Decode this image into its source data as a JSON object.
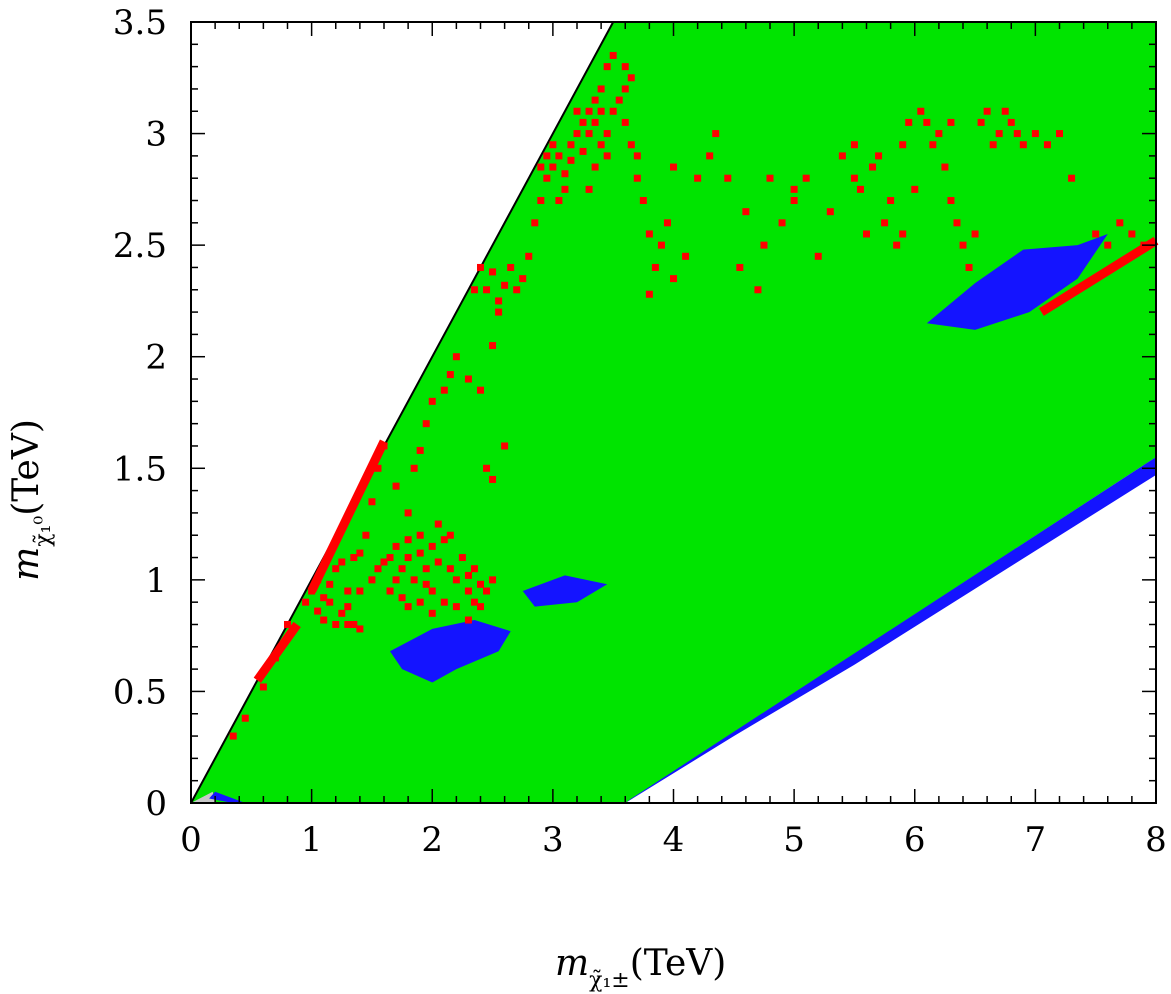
{
  "chart_data": {
    "type": "scatter",
    "xlabel": {
      "symbol": "m",
      "subscript": "χ̃₁±",
      "unit": "(TeV)"
    },
    "ylabel": {
      "symbol": "m",
      "subscript": "χ̃₁⁰",
      "unit": "(TeV)"
    },
    "xlim": [
      0,
      8
    ],
    "ylim": [
      0,
      3.5
    ],
    "x_ticks": [
      "0",
      "1",
      "2",
      "3",
      "4",
      "5",
      "6",
      "7",
      "8"
    ],
    "y_ticks": [
      "0",
      "0.5",
      "1",
      "1.5",
      "2",
      "2.5",
      "3",
      "3.5"
    ],
    "grid": false,
    "colors": {
      "green": "#00e400",
      "blue": "#1414ff",
      "red": "#ff0000",
      "gray": "#c8c8c8"
    },
    "regions": [
      {
        "color": "green",
        "points": [
          [
            0,
            0
          ],
          [
            3.5,
            3.5
          ],
          [
            8.0,
            3.5
          ],
          [
            8.0,
            1.55
          ],
          [
            3.6,
            0
          ],
          [
            0,
            0
          ]
        ]
      },
      {
        "color": "gray",
        "points": [
          [
            0,
            0
          ],
          [
            0.18,
            0.05
          ],
          [
            0.2,
            0
          ],
          [
            0,
            0
          ]
        ]
      },
      {
        "color": "blue",
        "points": [
          [
            1.65,
            0.68
          ],
          [
            2.0,
            0.78
          ],
          [
            2.35,
            0.82
          ],
          [
            2.65,
            0.77
          ],
          [
            2.55,
            0.68
          ],
          [
            2.2,
            0.6
          ],
          [
            2.0,
            0.54
          ],
          [
            1.75,
            0.6
          ]
        ]
      },
      {
        "color": "blue",
        "points": [
          [
            2.75,
            0.95
          ],
          [
            3.1,
            1.02
          ],
          [
            3.45,
            0.98
          ],
          [
            3.2,
            0.9
          ],
          [
            2.85,
            0.88
          ]
        ]
      },
      {
        "color": "blue",
        "points": [
          [
            6.1,
            2.15
          ],
          [
            6.5,
            2.33
          ],
          [
            6.9,
            2.48
          ],
          [
            7.35,
            2.5
          ],
          [
            7.6,
            2.55
          ],
          [
            7.35,
            2.35
          ],
          [
            6.95,
            2.2
          ],
          [
            6.5,
            2.12
          ]
        ]
      },
      {
        "color": "blue",
        "points": [
          [
            3.6,
            0
          ],
          [
            4.5,
            0.3
          ],
          [
            5.5,
            0.62
          ],
          [
            6.5,
            0.96
          ],
          [
            7.5,
            1.3
          ],
          [
            8.0,
            1.47
          ],
          [
            8.0,
            1.55
          ],
          [
            3.65,
            0.02
          ]
        ]
      },
      {
        "color": "blue",
        "points": [
          [
            0.15,
            0.02
          ],
          [
            0.35,
            0
          ],
          [
            0.45,
            0
          ],
          [
            0.2,
            0.05
          ]
        ]
      }
    ],
    "red_band_lines": [
      {
        "from": [
          0.55,
          0.55
        ],
        "to": [
          0.88,
          0.8
        ]
      },
      {
        "from": [
          7.05,
          2.2
        ],
        "to": [
          8.0,
          2.52
        ]
      },
      {
        "from": [
          1.0,
          0.95
        ],
        "to": [
          1.6,
          1.62
        ]
      }
    ],
    "red_points": [
      [
        0.35,
        0.3
      ],
      [
        0.45,
        0.38
      ],
      [
        0.6,
        0.52
      ],
      [
        0.7,
        0.65
      ],
      [
        0.8,
        0.8
      ],
      [
        0.85,
        0.78
      ],
      [
        0.95,
        0.9
      ],
      [
        1.0,
        0.95
      ],
      [
        1.05,
        1.0
      ],
      [
        1.1,
        0.92
      ],
      [
        1.15,
        0.98
      ],
      [
        1.2,
        1.05
      ],
      [
        1.25,
        1.08
      ],
      [
        1.3,
        0.95
      ],
      [
        1.35,
        1.1
      ],
      [
        1.4,
        1.12
      ],
      [
        1.45,
        1.2
      ],
      [
        1.5,
        1.35
      ],
      [
        1.55,
        1.5
      ],
      [
        1.6,
        1.6
      ],
      [
        1.15,
        0.9
      ],
      [
        1.25,
        0.85
      ],
      [
        1.3,
        0.8
      ],
      [
        1.2,
        0.8
      ],
      [
        1.35,
        0.8
      ],
      [
        1.4,
        0.78
      ],
      [
        1.1,
        0.82
      ],
      [
        1.05,
        0.86
      ],
      [
        1.3,
        0.88
      ],
      [
        1.4,
        0.95
      ],
      [
        1.5,
        1.0
      ],
      [
        1.55,
        1.05
      ],
      [
        1.6,
        1.08
      ],
      [
        1.65,
        1.1
      ],
      [
        1.7,
        1.15
      ],
      [
        1.75,
        1.05
      ],
      [
        1.8,
        1.1
      ],
      [
        1.85,
        1.0
      ],
      [
        1.9,
        1.12
      ],
      [
        1.95,
        1.05
      ],
      [
        2.0,
        1.15
      ],
      [
        2.05,
        1.08
      ],
      [
        2.1,
        1.18
      ],
      [
        2.15,
        1.05
      ],
      [
        2.2,
        1.0
      ],
      [
        2.25,
        1.1
      ],
      [
        2.3,
        0.95
      ],
      [
        2.35,
        1.05
      ],
      [
        2.4,
        0.98
      ],
      [
        1.75,
        0.92
      ],
      [
        1.8,
        0.88
      ],
      [
        1.9,
        0.9
      ],
      [
        2.0,
        0.85
      ],
      [
        2.1,
        0.9
      ],
      [
        2.2,
        0.88
      ],
      [
        2.3,
        0.82
      ],
      [
        2.4,
        0.88
      ],
      [
        2.45,
        0.95
      ],
      [
        2.5,
        1.0
      ],
      [
        2.05,
        1.25
      ],
      [
        2.15,
        1.2
      ],
      [
        1.9,
        1.2
      ],
      [
        1.8,
        1.18
      ],
      [
        1.7,
        1.0
      ],
      [
        1.65,
        0.95
      ],
      [
        2.0,
        0.95
      ],
      [
        1.95,
        0.98
      ],
      [
        2.3,
        1.02
      ],
      [
        2.35,
        0.9
      ],
      [
        1.8,
        1.3
      ],
      [
        1.7,
        1.42
      ],
      [
        1.85,
        1.5
      ],
      [
        1.9,
        1.58
      ],
      [
        1.95,
        1.7
      ],
      [
        2.0,
        1.8
      ],
      [
        2.1,
        1.85
      ],
      [
        2.15,
        1.92
      ],
      [
        2.2,
        2.0
      ],
      [
        2.3,
        1.9
      ],
      [
        2.4,
        1.85
      ],
      [
        2.5,
        2.05
      ],
      [
        2.6,
        1.6
      ],
      [
        2.45,
        1.5
      ],
      [
        2.5,
        1.45
      ],
      [
        2.55,
        2.2
      ],
      [
        2.35,
        2.3
      ],
      [
        2.4,
        2.4
      ],
      [
        2.45,
        2.3
      ],
      [
        2.5,
        2.38
      ],
      [
        2.55,
        2.25
      ],
      [
        2.6,
        2.32
      ],
      [
        2.65,
        2.4
      ],
      [
        2.7,
        2.3
      ],
      [
        2.75,
        2.35
      ],
      [
        2.8,
        2.45
      ],
      [
        2.85,
        2.6
      ],
      [
        2.9,
        2.7
      ],
      [
        2.95,
        2.8
      ],
      [
        3.0,
        2.85
      ],
      [
        3.05,
        2.9
      ],
      [
        3.1,
        2.75
      ],
      [
        3.15,
        2.95
      ],
      [
        3.2,
        3.0
      ],
      [
        3.25,
        3.05
      ],
      [
        3.3,
        3.1
      ],
      [
        3.35,
        3.15
      ],
      [
        3.4,
        3.2
      ],
      [
        3.45,
        3.3
      ],
      [
        3.5,
        3.35
      ],
      [
        2.9,
        2.85
      ],
      [
        2.95,
        2.9
      ],
      [
        3.0,
        2.95
      ],
      [
        3.05,
        2.7
      ],
      [
        3.1,
        2.82
      ],
      [
        3.15,
        2.88
      ],
      [
        3.2,
        3.1
      ],
      [
        3.25,
        2.92
      ],
      [
        3.3,
        3.0
      ],
      [
        3.35,
        3.05
      ],
      [
        3.4,
        3.1
      ],
      [
        3.45,
        3.0
      ],
      [
        3.5,
        3.1
      ],
      [
        3.55,
        3.15
      ],
      [
        3.6,
        3.3
      ],
      [
        3.65,
        3.25
      ],
      [
        3.6,
        3.05
      ],
      [
        3.65,
        2.95
      ],
      [
        3.7,
        2.8
      ],
      [
        3.75,
        2.7
      ],
      [
        3.8,
        2.55
      ],
      [
        3.85,
        2.4
      ],
      [
        3.9,
        2.5
      ],
      [
        3.95,
        2.6
      ],
      [
        4.0,
        2.35
      ],
      [
        3.8,
        2.28
      ],
      [
        4.1,
        2.45
      ],
      [
        4.2,
        2.8
      ],
      [
        4.3,
        2.9
      ],
      [
        4.35,
        3.0
      ],
      [
        4.45,
        2.8
      ],
      [
        4.55,
        2.4
      ],
      [
        4.6,
        2.65
      ],
      [
        4.7,
        2.3
      ],
      [
        4.75,
        2.5
      ],
      [
        4.8,
        2.8
      ],
      [
        4.9,
        2.6
      ],
      [
        5.0,
        2.7
      ],
      [
        5.1,
        2.8
      ],
      [
        5.2,
        2.45
      ],
      [
        5.3,
        2.65
      ],
      [
        5.4,
        2.9
      ],
      [
        5.5,
        2.95
      ],
      [
        5.55,
        2.75
      ],
      [
        5.6,
        2.55
      ],
      [
        5.65,
        2.85
      ],
      [
        5.7,
        2.9
      ],
      [
        5.75,
        2.6
      ],
      [
        5.8,
        2.7
      ],
      [
        5.85,
        2.5
      ],
      [
        5.9,
        2.95
      ],
      [
        5.95,
        3.05
      ],
      [
        6.0,
        2.75
      ],
      [
        6.05,
        3.1
      ],
      [
        6.1,
        3.05
      ],
      [
        6.15,
        2.95
      ],
      [
        6.2,
        3.0
      ],
      [
        6.25,
        2.85
      ],
      [
        6.3,
        3.05
      ],
      [
        6.35,
        2.6
      ],
      [
        6.4,
        2.5
      ],
      [
        6.45,
        2.4
      ],
      [
        6.5,
        2.55
      ],
      [
        6.55,
        3.05
      ],
      [
        6.6,
        3.1
      ],
      [
        6.65,
        2.95
      ],
      [
        6.7,
        3.0
      ],
      [
        6.75,
        3.1
      ],
      [
        6.8,
        3.05
      ],
      [
        6.85,
        3.0
      ],
      [
        6.9,
        2.95
      ],
      [
        7.0,
        3.0
      ],
      [
        7.1,
        2.95
      ],
      [
        7.2,
        3.0
      ],
      [
        7.3,
        2.8
      ],
      [
        7.5,
        2.55
      ],
      [
        7.6,
        2.5
      ],
      [
        7.7,
        2.6
      ],
      [
        7.8,
        2.55
      ],
      [
        7.9,
        2.5
      ],
      [
        4.0,
        2.85
      ],
      [
        3.6,
        3.2
      ],
      [
        3.7,
        2.9
      ],
      [
        3.3,
        2.75
      ],
      [
        3.35,
        2.85
      ],
      [
        3.4,
        2.95
      ],
      [
        3.45,
        2.9
      ],
      [
        5.0,
        2.75
      ],
      [
        5.5,
        2.8
      ],
      [
        5.9,
        2.55
      ],
      [
        6.3,
        2.7
      ]
    ]
  }
}
